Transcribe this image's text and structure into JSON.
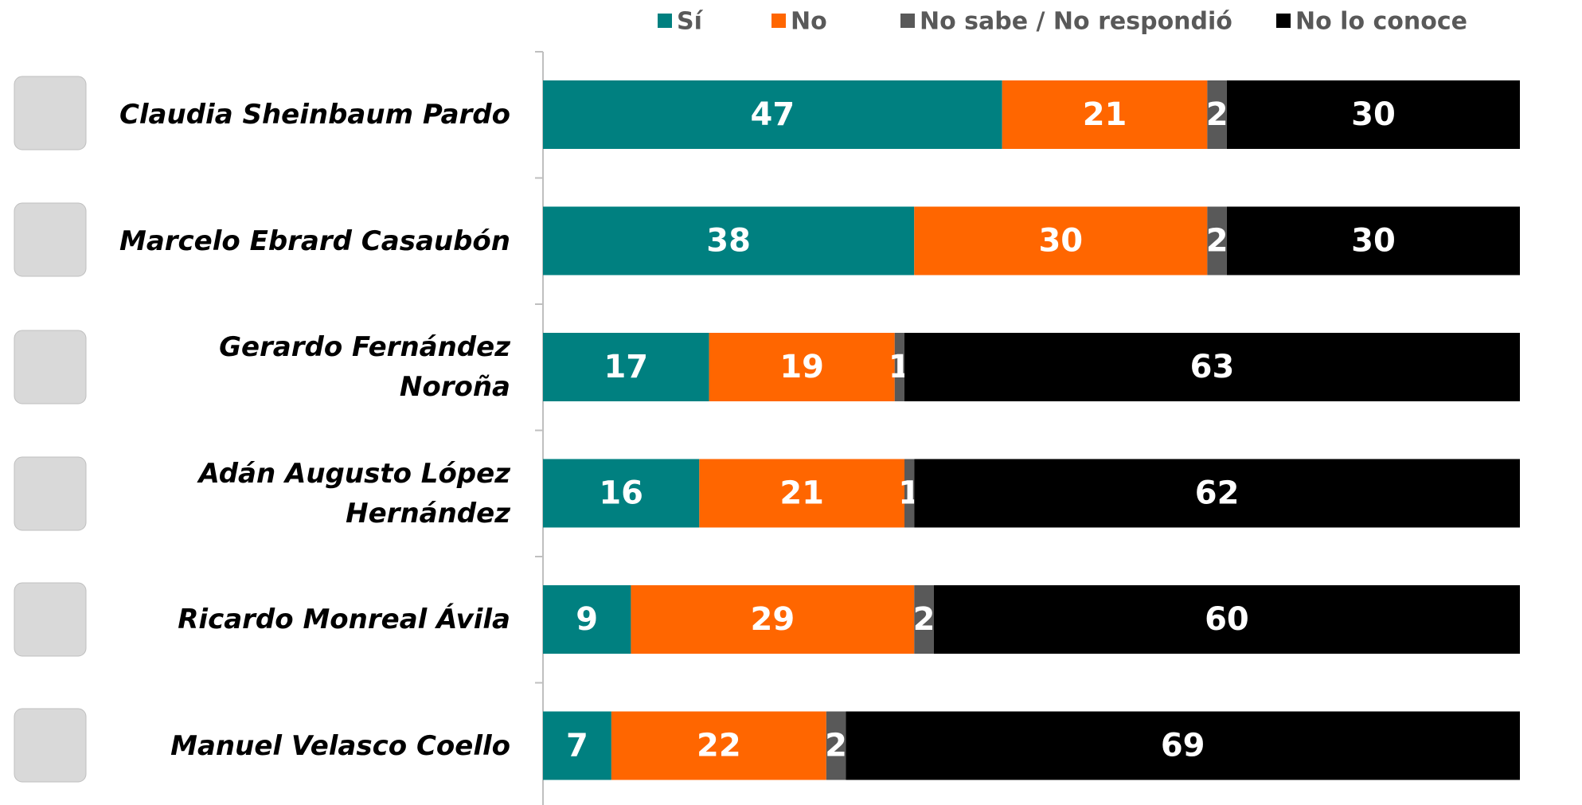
{
  "chart_data": {
    "type": "stacked-bar-horizontal",
    "categories": [
      "Claudia Sheinbaum Pardo",
      "Marcelo Ebrard Casaubón",
      "Gerardo Fernández Noroña",
      "Adán Augusto López Hernández",
      "Ricardo Monreal Ávila",
      "Manuel Velasco Coello"
    ],
    "series": [
      {
        "name": "Sí",
        "color": "#008080",
        "values": [
          47,
          38,
          17,
          16,
          9,
          7
        ]
      },
      {
        "name": "No",
        "color": "#ff6600",
        "values": [
          21,
          30,
          19,
          21,
          29,
          22
        ]
      },
      {
        "name": "No sabe / No respondió",
        "color": "#595959",
        "values": [
          2,
          2,
          1,
          1,
          2,
          2
        ]
      },
      {
        "name": "No lo conoce",
        "color": "#000000",
        "values": [
          30,
          30,
          63,
          62,
          60,
          69
        ]
      }
    ],
    "xlim": [
      0,
      100
    ],
    "legend": "top"
  }
}
